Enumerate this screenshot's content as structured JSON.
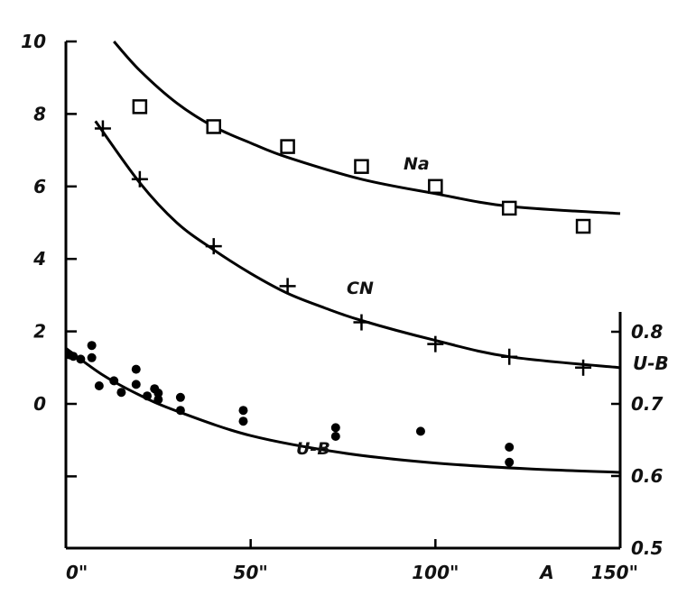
{
  "chart_data": {
    "type": "scatter",
    "x_axis": {
      "range": [
        0,
        150
      ],
      "ticks": [
        0,
        50,
        100,
        150
      ],
      "tick_labels": [
        "0\"",
        "50\"",
        "100\"",
        "150\""
      ],
      "label": "A"
    },
    "y_axis_left": {
      "range": [
        -4,
        10
      ],
      "ticks": [
        0,
        2,
        4,
        6,
        8,
        10
      ],
      "tick_labels": [
        "0",
        "2",
        "4",
        "6",
        "8",
        "10"
      ]
    },
    "y_axis_right": {
      "range": [
        0.5,
        0.85
      ],
      "ticks": [
        0.5,
        0.6,
        0.7,
        0.8
      ],
      "tick_labels": [
        "0.5",
        "0.6",
        "0.7",
        "0.8"
      ],
      "label": "U-B"
    },
    "grid": false,
    "series": [
      {
        "name": "Na",
        "marker": "open-square",
        "axis": "left",
        "points": [
          [
            20,
            8.2
          ],
          [
            40,
            7.65
          ],
          [
            60,
            7.1
          ],
          [
            80,
            6.55
          ],
          [
            100,
            6.0
          ],
          [
            120,
            5.4
          ],
          [
            140,
            4.9
          ]
        ],
        "fit": [
          [
            13,
            10.0
          ],
          [
            20,
            9.2
          ],
          [
            30,
            8.3
          ],
          [
            40,
            7.65
          ],
          [
            50,
            7.2
          ],
          [
            60,
            6.8
          ],
          [
            80,
            6.2
          ],
          [
            100,
            5.8
          ],
          [
            120,
            5.45
          ],
          [
            150,
            5.25
          ]
        ]
      },
      {
        "name": "CN",
        "marker": "plus",
        "axis": "left",
        "points": [
          [
            10,
            7.6
          ],
          [
            20,
            6.2
          ],
          [
            40,
            4.35
          ],
          [
            60,
            3.25
          ],
          [
            80,
            2.25
          ],
          [
            100,
            1.65
          ],
          [
            120,
            1.3
          ],
          [
            140,
            1.0
          ]
        ],
        "fit": [
          [
            8,
            7.8
          ],
          [
            20,
            6.1
          ],
          [
            30,
            5.0
          ],
          [
            40,
            4.25
          ],
          [
            50,
            3.6
          ],
          [
            60,
            3.05
          ],
          [
            70,
            2.65
          ],
          [
            80,
            2.3
          ],
          [
            100,
            1.75
          ],
          [
            120,
            1.3
          ],
          [
            150,
            1.0
          ]
        ]
      },
      {
        "name": "U-B",
        "marker": "filled-dot",
        "axis": "right",
        "points": [
          [
            1,
            0.768
          ],
          [
            2,
            0.766
          ],
          [
            4,
            0.762
          ],
          [
            7,
            0.781
          ],
          [
            7,
            0.764
          ],
          [
            9,
            0.725
          ],
          [
            13,
            0.732
          ],
          [
            15,
            0.716
          ],
          [
            19,
            0.748
          ],
          [
            19,
            0.727
          ],
          [
            22,
            0.711
          ],
          [
            24,
            0.721
          ],
          [
            25,
            0.715
          ],
          [
            25,
            0.706
          ],
          [
            31,
            0.709
          ],
          [
            31,
            0.691
          ],
          [
            48,
            0.691
          ],
          [
            48,
            0.676
          ],
          [
            73,
            0.667
          ],
          [
            73,
            0.655
          ],
          [
            96,
            0.662
          ],
          [
            120,
            0.64
          ],
          [
            120,
            0.619
          ]
        ],
        "fit": [
          [
            0,
            0.777
          ],
          [
            10,
            0.74
          ],
          [
            20,
            0.712
          ],
          [
            30,
            0.69
          ],
          [
            50,
            0.656
          ],
          [
            75,
            0.632
          ],
          [
            100,
            0.618
          ],
          [
            125,
            0.61
          ],
          [
            150,
            0.605
          ]
        ]
      }
    ]
  }
}
